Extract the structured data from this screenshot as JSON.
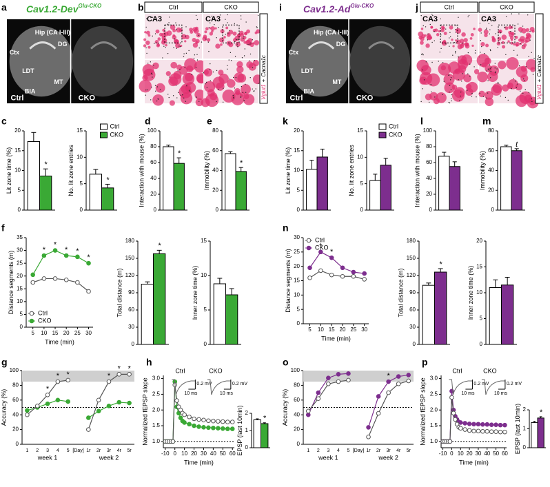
{
  "figure": {
    "panel_letters": [
      "a",
      "b",
      "c",
      "d",
      "e",
      "f",
      "g",
      "h",
      "i",
      "j",
      "k",
      "l",
      "m",
      "n",
      "o",
      "p"
    ],
    "dev_title": {
      "main": "Cav1.2-Dev",
      "sup": "Glu-CKO"
    },
    "ad_title": {
      "main": "Cav1.2-Ad",
      "sup": "Glu-CKO"
    },
    "brain_labels": [
      "Ctx",
      "Hip (CA I-III)",
      "DG",
      "LDT",
      "MT",
      "BlA",
      "Ctrl",
      "CKO"
    ],
    "ish_headers": [
      "Ctrl",
      "CKO"
    ],
    "ish_region": "CA3",
    "ish_side": [
      "Vglut1",
      "+",
      "Cacna1c"
    ]
  },
  "chart_data": [
    {
      "type": "bar",
      "ylabel": "Lit zone time (%)",
      "ylim": [
        0,
        20
      ],
      "yticks": [
        0,
        5,
        10,
        15,
        20
      ],
      "series": [
        {
          "color": "#ffffff",
          "values": [
            17.3
          ],
          "errors": [
            2.3
          ]
        },
        {
          "color": "#3aa935",
          "values": [
            8.6
          ],
          "errors": [
            1.8
          ],
          "annotation": "*"
        }
      ]
    },
    {
      "type": "bar",
      "ylabel": "No. lit zone entries",
      "ylim": [
        0,
        15
      ],
      "yticks": [
        0,
        5,
        10,
        15
      ],
      "legend": "upper right",
      "series": [
        {
          "name": "Ctrl",
          "color": "#ffffff",
          "values": [
            6.8
          ],
          "errors": [
            0.9
          ]
        },
        {
          "name": "CKO",
          "color": "#3aa935",
          "values": [
            4.2
          ],
          "errors": [
            0.7
          ],
          "annotation": "*"
        }
      ]
    },
    {
      "type": "bar",
      "ylabel": "Interaction with mouse (%)",
      "ylim": [
        0,
        100
      ],
      "yticks": [
        0,
        20,
        40,
        60,
        80,
        100
      ],
      "series": [
        {
          "color": "#ffffff",
          "values": [
            80
          ],
          "errors": [
            2
          ]
        },
        {
          "color": "#3aa935",
          "values": [
            59
          ],
          "errors": [
            7
          ],
          "annotation": "*"
        }
      ]
    },
    {
      "type": "bar",
      "ylabel": "Immobility (%)",
      "ylim": [
        0,
        80
      ],
      "yticks": [
        0,
        20,
        40,
        60,
        80
      ],
      "series": [
        {
          "color": "#ffffff",
          "values": [
            57
          ],
          "errors": [
            2
          ]
        },
        {
          "color": "#3aa935",
          "values": [
            39
          ],
          "errors": [
            4
          ],
          "annotation": "*"
        }
      ]
    },
    {
      "type": "bar",
      "ylabel": "Lit zone time (%)",
      "ylim": [
        0,
        20
      ],
      "yticks": [
        0,
        5,
        10,
        15,
        20
      ],
      "series": [
        {
          "color": "#ffffff",
          "values": [
            10.3
          ],
          "errors": [
            2.3
          ]
        },
        {
          "color": "#7d2e8e",
          "values": [
            13.4
          ],
          "errors": [
            2
          ]
        }
      ]
    },
    {
      "type": "bar",
      "ylabel": "No. lit zone entries",
      "ylim": [
        0,
        15
      ],
      "yticks": [
        0,
        5,
        10,
        15
      ],
      "legend": "upper right",
      "series": [
        {
          "name": "Ctrl",
          "color": "#ffffff",
          "values": [
            5.6
          ],
          "errors": [
            1.2
          ]
        },
        {
          "name": "CKO",
          "color": "#7d2e8e",
          "values": [
            8.5
          ],
          "errors": [
            1.3
          ]
        }
      ]
    },
    {
      "type": "bar",
      "ylabel": "Interaction with mouse (%)",
      "ylim": [
        0,
        100
      ],
      "yticks": [
        0,
        20,
        40,
        60,
        80,
        100
      ],
      "series": [
        {
          "color": "#ffffff",
          "values": [
            68
          ],
          "errors": [
            5
          ]
        },
        {
          "color": "#7d2e8e",
          "values": [
            55
          ],
          "errors": [
            6
          ]
        }
      ]
    },
    {
      "type": "bar",
      "ylabel": "Immobility (%)",
      "ylim": [
        0,
        80
      ],
      "yticks": [
        0,
        20,
        40,
        60,
        80
      ],
      "series": [
        {
          "color": "#ffffff",
          "values": [
            64
          ],
          "errors": [
            1.5
          ]
        },
        {
          "color": "#7d2e8e",
          "values": [
            60
          ],
          "errors": [
            2
          ],
          "annotation": "t"
        }
      ]
    },
    {
      "type": "line",
      "ylabel": "Distance segments (m)",
      "xlabel": "Time  (min)",
      "x": [
        5,
        10,
        15,
        20,
        25,
        30
      ],
      "xlim": [
        2,
        32
      ],
      "xticks": [
        5,
        10,
        15,
        20,
        25,
        30
      ],
      "ylim": [
        0,
        35
      ],
      "yticks": [
        0,
        5,
        10,
        15,
        20,
        25,
        30,
        35
      ],
      "legend": "lower left",
      "marks": [
        null,
        "*",
        "*",
        "*",
        "*",
        "*"
      ],
      "series": [
        {
          "name": "Ctrl",
          "color": "#555555",
          "fill": "#ffffff",
          "values": [
            17.5,
            19,
            19,
            18.5,
            17.5,
            14
          ]
        },
        {
          "name": "CKO",
          "color": "#3aa935",
          "fill": "#3aa935",
          "values": [
            20.5,
            28,
            30,
            28,
            27.5,
            25
          ]
        }
      ]
    },
    {
      "type": "bar",
      "ylabel": "Total distance (m)",
      "ylim": [
        0,
        180
      ],
      "yticks": [
        0,
        30,
        60,
        90,
        120,
        150,
        180
      ],
      "series": [
        {
          "color": "#ffffff",
          "values": [
            105
          ],
          "errors": [
            4
          ]
        },
        {
          "color": "#3aa935",
          "values": [
            158
          ],
          "errors": [
            6
          ],
          "annotation": "*"
        }
      ]
    },
    {
      "type": "bar",
      "ylabel": "Inner zone time (%)",
      "ylim": [
        0,
        15
      ],
      "yticks": [
        0,
        5,
        10,
        15
      ],
      "series": [
        {
          "color": "#ffffff",
          "values": [
            8.8
          ],
          "errors": [
            0.8
          ]
        },
        {
          "color": "#3aa935",
          "values": [
            7.2
          ],
          "errors": [
            0.9
          ]
        }
      ]
    },
    {
      "type": "line",
      "ylabel": "Distance segments (m)",
      "xlabel": "Time (min)",
      "x": [
        5,
        10,
        15,
        20,
        25,
        30
      ],
      "xlim": [
        2,
        32
      ],
      "xticks": [
        5,
        10,
        15,
        20,
        25,
        30
      ],
      "ylim": [
        0,
        30
      ],
      "yticks": [
        0,
        5,
        10,
        15,
        20,
        25,
        30
      ],
      "legend": "upper left",
      "marks": [
        null,
        "*",
        "*",
        null,
        null,
        null
      ],
      "series": [
        {
          "name": "Ctrl",
          "color": "#555555",
          "fill": "#ffffff",
          "values": [
            16,
            18.5,
            17,
            16.5,
            16.5,
            15.5
          ]
        },
        {
          "name": "CKO",
          "color": "#7d2e8e",
          "fill": "#7d2e8e",
          "values": [
            19.5,
            25,
            23,
            19.5,
            18,
            17.5
          ]
        }
      ]
    },
    {
      "type": "bar",
      "ylabel": "Total distance (m)",
      "ylim": [
        0,
        180
      ],
      "yticks": [
        0,
        30,
        60,
        90,
        120,
        150,
        180
      ],
      "series": [
        {
          "color": "#ffffff",
          "values": [
            103
          ],
          "errors": [
            4
          ]
        },
        {
          "color": "#7d2e8e",
          "values": [
            126
          ],
          "errors": [
            6
          ],
          "annotation": "*"
        }
      ]
    },
    {
      "type": "bar",
      "ylabel": "Inner zone time (%)",
      "ylim": [
        0,
        20
      ],
      "yticks": [
        0,
        5,
        10,
        15,
        20
      ],
      "series": [
        {
          "color": "#ffffff",
          "values": [
            11
          ],
          "errors": [
            1.5
          ]
        },
        {
          "color": "#7d2e8e",
          "values": [
            11.5
          ],
          "errors": [
            1.5
          ]
        }
      ]
    },
    {
      "type": "line",
      "ylabel": "Accuracy (%)",
      "categories": [
        "1",
        "2",
        "3",
        "4",
        "5",
        "[Day]",
        "1r",
        "2r",
        "3r",
        "4r",
        "5r"
      ],
      "ylim": [
        0,
        100
      ],
      "yticks": [
        0,
        20,
        40,
        60,
        80,
        100
      ],
      "hline": 50,
      "band": [
        85,
        100
      ],
      "group_labels": [
        "week 1",
        "week 2"
      ],
      "marks": [
        null,
        null,
        "*",
        "*",
        "*",
        null,
        null,
        null,
        "*",
        "*",
        "*"
      ],
      "series": [
        {
          "color": "#555555",
          "fill": "#ffffff",
          "values": [
            40,
            52,
            67,
            85,
            87,
            null,
            20,
            60,
            85,
            95,
            95
          ]
        },
        {
          "color": "#3aa935",
          "fill": "#3aa935",
          "values": [
            46,
            50,
            55,
            60,
            58,
            null,
            36,
            45,
            52,
            57,
            56
          ]
        }
      ]
    },
    {
      "type": "line",
      "ylabel": "Normalized fEPSP slope",
      "xlabel": "Time (min)",
      "x": [
        -10,
        -8,
        -6,
        -4,
        -2,
        0,
        2,
        4,
        6,
        8,
        10,
        15,
        20,
        25,
        30,
        35,
        40,
        45,
        50,
        55,
        60
      ],
      "xlim": [
        -12,
        62
      ],
      "xticks": [
        -10,
        0,
        10,
        20,
        30,
        40,
        50,
        60
      ],
      "ylim": [
        0.8,
        3.1
      ],
      "yticks": [
        {
          "value": 1,
          "label": "1.0"
        },
        1.5,
        {
          "value": 2,
          "label": "2.0"
        },
        2.5,
        {
          "value": 3,
          "label": "3.0"
        }
      ],
      "hline": 1,
      "inset": {
        "traces": [
          "Ctrl",
          "CKO"
        ],
        "scale_y": "0.2 mV",
        "scale_x": "10 ms"
      },
      "series": [
        {
          "color": "#555555",
          "fill": "#ffffff",
          "values": [
            1,
            1,
            1,
            1,
            1,
            2.8,
            2.3,
            2.1,
            2,
            1.9,
            1.85,
            1.78,
            1.72,
            1.7,
            1.68,
            1.66,
            1.65,
            1.64,
            1.63,
            1.62,
            1.62
          ]
        },
        {
          "color": "#3aa935",
          "fill": "#3aa935",
          "values": [
            1,
            1,
            1,
            1,
            1,
            2.9,
            2.1,
            1.9,
            1.75,
            1.65,
            1.6,
            1.55,
            1.5,
            1.47,
            1.45,
            1.44,
            1.43,
            1.42,
            1.41,
            1.4,
            1.4
          ]
        }
      ]
    },
    {
      "type": "bar",
      "ylabel": "EPSP (last 10min)",
      "ylim": [
        0,
        2
      ],
      "yticks": [
        0,
        1,
        2
      ],
      "series": [
        {
          "color": "#ffffff",
          "values": [
            1.62
          ],
          "errors": [
            0.06
          ]
        },
        {
          "color": "#3aa935",
          "values": [
            1.4
          ],
          "errors": [
            0.05
          ],
          "annotation": "*"
        }
      ]
    },
    {
      "type": "line",
      "ylabel": "Accuracy (%)",
      "categories": [
        "1",
        "2",
        "3",
        "4",
        "5",
        "[Day]",
        "1r",
        "2r",
        "3r",
        "4r",
        "5r"
      ],
      "ylim": [
        0,
        100
      ],
      "yticks": [
        0,
        20,
        40,
        60,
        80,
        100
      ],
      "hline": 50,
      "band": [
        85,
        100
      ],
      "group_labels": [
        "week 1",
        "week 2"
      ],
      "marks": [
        null,
        null,
        null,
        null,
        null,
        null,
        null,
        null,
        "*",
        null,
        null
      ],
      "series": [
        {
          "color": "#555555",
          "fill": "#ffffff",
          "values": [
            45,
            62,
            82,
            85,
            87,
            null,
            10,
            42,
            70,
            82,
            86
          ]
        },
        {
          "color": "#7d2e8e",
          "fill": "#7d2e8e",
          "values": [
            40,
            70,
            90,
            95,
            96,
            null,
            23,
            65,
            85,
            92,
            94
          ]
        }
      ]
    },
    {
      "type": "line",
      "ylabel": "Normalized fEPSP slope",
      "xlabel": "Time (min)",
      "x": [
        -10,
        -8,
        -6,
        -4,
        -2,
        0,
        2,
        4,
        6,
        8,
        10,
        15,
        20,
        25,
        30,
        35,
        40,
        45,
        50,
        55,
        60
      ],
      "xlim": [
        -12,
        62
      ],
      "xticks": [
        -10,
        0,
        10,
        20,
        30,
        40,
        50,
        60
      ],
      "ylim": [
        0.8,
        3.1
      ],
      "yticks": [
        {
          "value": 1,
          "label": "1.0"
        },
        1.5,
        {
          "value": 2,
          "label": "2.0"
        },
        2.5,
        {
          "value": 3,
          "label": "3.0"
        }
      ],
      "hline": 1,
      "inset": {
        "traces": [
          "Ctrl",
          "CKO"
        ],
        "scale_y": "0.2 mV",
        "scale_x": "10 ms"
      },
      "series": [
        {
          "color": "#555555",
          "fill": "#ffffff",
          "values": [
            1,
            1,
            1,
            1,
            1,
            2.4,
            1.9,
            1.7,
            1.55,
            1.45,
            1.42,
            1.38,
            1.35,
            1.33,
            1.33,
            1.32,
            1.32,
            1.31,
            1.31,
            1.3,
            1.3
          ]
        },
        {
          "color": "#7d2e8e",
          "fill": "#7d2e8e",
          "values": [
            1,
            1,
            1,
            1,
            1,
            2.6,
            2,
            1.8,
            1.7,
            1.62,
            1.6,
            1.58,
            1.56,
            1.55,
            1.55,
            1.54,
            1.54,
            1.53,
            1.53,
            1.52,
            1.52
          ]
        }
      ]
    },
    {
      "type": "bar",
      "ylabel": "EPSP (last 10min)",
      "ylim": [
        0,
        2
      ],
      "yticks": [
        0,
        1,
        2
      ],
      "series": [
        {
          "color": "#ffffff",
          "values": [
            1.33
          ],
          "errors": [
            0.06
          ]
        },
        {
          "color": "#7d2e8e",
          "values": [
            1.57
          ],
          "errors": [
            0.07
          ],
          "annotation": "*"
        }
      ]
    }
  ]
}
